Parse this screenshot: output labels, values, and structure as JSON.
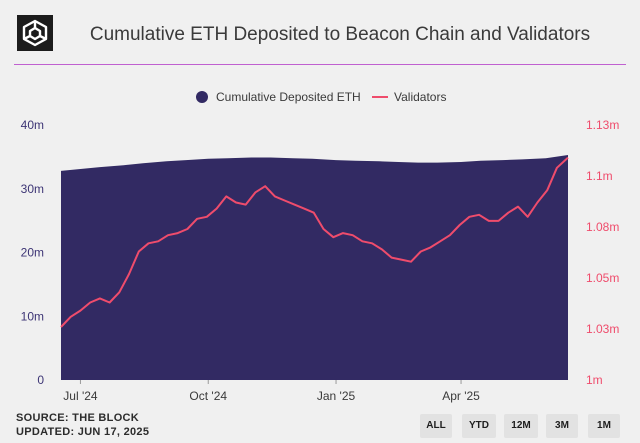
{
  "header": {
    "title": "Cumulative ETH Deposited to Beacon Chain and Validators",
    "logo": "the-block-cube-logo"
  },
  "footer": {
    "source": "SOURCE: THE BLOCK",
    "updated": "UPDATED: JUN 17, 2025"
  },
  "range_buttons": [
    "ALL",
    "YTD",
    "12M",
    "3M",
    "1M"
  ],
  "colors": {
    "area": "#322a63",
    "line": "#ef4c6c",
    "left_axis": "#3d3575",
    "right_axis": "#ef4c6c",
    "rule": "#c060d0",
    "background": "#f0f0f0"
  },
  "chart_data": {
    "type": "area",
    "legend": [
      "Cumulative Deposited ETH",
      "Validators"
    ],
    "legend_position": "top-center",
    "grid": false,
    "x_ticks": [
      "Jul '24",
      "Oct '24",
      "Jan '25",
      "Apr '25"
    ],
    "xlim": [
      "2024-06-17",
      "2025-06-17"
    ],
    "y_left": {
      "ticks": [
        "0",
        "10m",
        "20m",
        "30m",
        "40m"
      ],
      "ylim": [
        0,
        40000000
      ]
    },
    "y_right": {
      "ticks": [
        "1m",
        "1.03m",
        "1.05m",
        "1.08m",
        "1.1m",
        "1.13m"
      ],
      "ylim": [
        1000000,
        1125000
      ]
    },
    "series": [
      {
        "name": "Cumulative Deposited ETH",
        "type": "area",
        "axis": "left",
        "points": [
          [
            "2024-06-17",
            32800000
          ],
          [
            "2024-07-01",
            33100000
          ],
          [
            "2024-07-15",
            33400000
          ],
          [
            "2024-08-01",
            33700000
          ],
          [
            "2024-08-15",
            34000000
          ],
          [
            "2024-09-01",
            34300000
          ],
          [
            "2024-09-15",
            34500000
          ],
          [
            "2024-10-01",
            34700000
          ],
          [
            "2024-10-15",
            34800000
          ],
          [
            "2024-11-01",
            34900000
          ],
          [
            "2024-11-15",
            34900000
          ],
          [
            "2024-12-01",
            34800000
          ],
          [
            "2024-12-15",
            34700000
          ],
          [
            "2025-01-01",
            34500000
          ],
          [
            "2025-01-15",
            34400000
          ],
          [
            "2025-02-01",
            34300000
          ],
          [
            "2025-02-15",
            34200000
          ],
          [
            "2025-03-01",
            34100000
          ],
          [
            "2025-03-15",
            34100000
          ],
          [
            "2025-04-01",
            34200000
          ],
          [
            "2025-04-15",
            34400000
          ],
          [
            "2025-05-01",
            34500000
          ],
          [
            "2025-05-15",
            34600000
          ],
          [
            "2025-06-01",
            34800000
          ],
          [
            "2025-06-17",
            35300000
          ]
        ]
      },
      {
        "name": "Validators",
        "type": "line",
        "axis": "right",
        "points": [
          [
            "2024-06-17",
            1026000
          ],
          [
            "2024-06-24",
            1031000
          ],
          [
            "2024-07-01",
            1034000
          ],
          [
            "2024-07-08",
            1038000
          ],
          [
            "2024-07-15",
            1040000
          ],
          [
            "2024-07-22",
            1038000
          ],
          [
            "2024-07-29",
            1043000
          ],
          [
            "2024-08-05",
            1052000
          ],
          [
            "2024-08-12",
            1063000
          ],
          [
            "2024-08-19",
            1067000
          ],
          [
            "2024-08-26",
            1068000
          ],
          [
            "2024-09-02",
            1071000
          ],
          [
            "2024-09-09",
            1072000
          ],
          [
            "2024-09-16",
            1074000
          ],
          [
            "2024-09-23",
            1079000
          ],
          [
            "2024-09-30",
            1080000
          ],
          [
            "2024-10-07",
            1084000
          ],
          [
            "2024-10-14",
            1090000
          ],
          [
            "2024-10-21",
            1087000
          ],
          [
            "2024-10-28",
            1086000
          ],
          [
            "2024-11-04",
            1092000
          ],
          [
            "2024-11-11",
            1095000
          ],
          [
            "2024-11-18",
            1090000
          ],
          [
            "2024-11-25",
            1088000
          ],
          [
            "2024-12-02",
            1086000
          ],
          [
            "2024-12-09",
            1084000
          ],
          [
            "2024-12-16",
            1082000
          ],
          [
            "2024-12-23",
            1074000
          ],
          [
            "2024-12-30",
            1070000
          ],
          [
            "2025-01-06",
            1072000
          ],
          [
            "2025-01-13",
            1071000
          ],
          [
            "2025-01-20",
            1068000
          ],
          [
            "2025-01-27",
            1067000
          ],
          [
            "2025-02-03",
            1064000
          ],
          [
            "2025-02-10",
            1060000
          ],
          [
            "2025-02-17",
            1059000
          ],
          [
            "2025-02-24",
            1058000
          ],
          [
            "2025-03-03",
            1063000
          ],
          [
            "2025-03-10",
            1065000
          ],
          [
            "2025-03-17",
            1068000
          ],
          [
            "2025-03-24",
            1071000
          ],
          [
            "2025-03-31",
            1076000
          ],
          [
            "2025-04-07",
            1080000
          ],
          [
            "2025-04-14",
            1081000
          ],
          [
            "2025-04-21",
            1078000
          ],
          [
            "2025-04-28",
            1078000
          ],
          [
            "2025-05-05",
            1082000
          ],
          [
            "2025-05-12",
            1085000
          ],
          [
            "2025-05-19",
            1080000
          ],
          [
            "2025-05-26",
            1087000
          ],
          [
            "2025-06-02",
            1093000
          ],
          [
            "2025-06-09",
            1104000
          ],
          [
            "2025-06-17",
            1109000
          ]
        ]
      }
    ]
  }
}
